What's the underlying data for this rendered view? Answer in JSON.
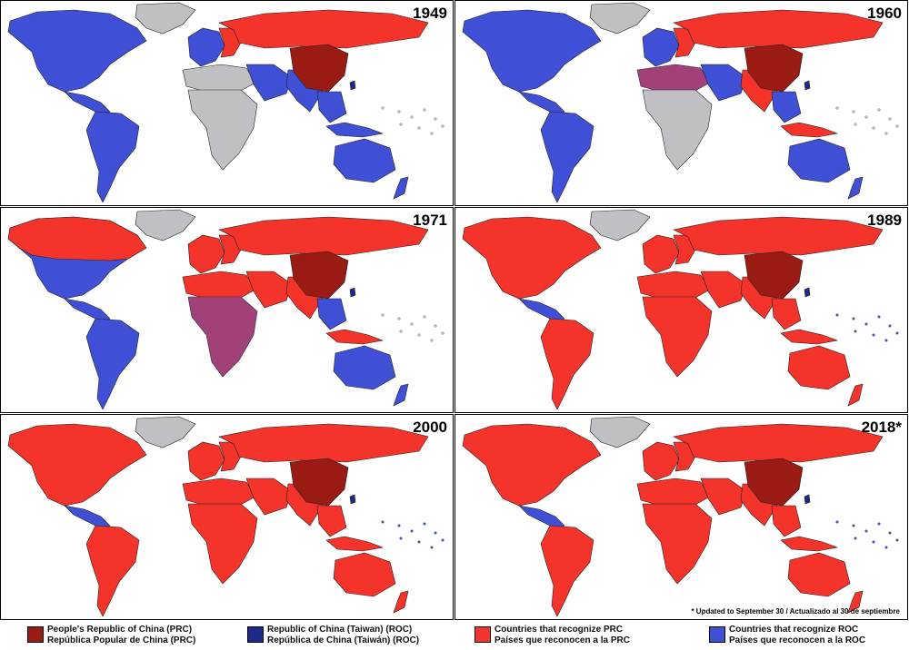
{
  "colors": {
    "prc": "#9a1a14",
    "roc": "#1c2a8c",
    "recognize_prc": "#f4332a",
    "recognize_roc": "#3f4fd6",
    "neutral": "#c0c0c4"
  },
  "panels": [
    {
      "year": "1949",
      "status": {
        "north_america": "roc",
        "greenland": "neutral",
        "central_america": "roc",
        "south_america": "roc",
        "europe_west": "roc",
        "europe_east": "prc_side",
        "russia": "prc_side",
        "middle_east": "roc",
        "africa": "neutral",
        "north_africa": "neutral",
        "south_asia": "roc",
        "southeast_asia": "roc",
        "china": "prc",
        "taiwan": "roc",
        "australia": "roc",
        "new_zealand": "roc",
        "indonesia": "roc"
      }
    },
    {
      "year": "1960",
      "status": {
        "north_america": "roc",
        "greenland": "neutral",
        "central_america": "roc",
        "south_america": "roc",
        "europe_west": "roc",
        "europe_east": "prc_side",
        "russia": "prc_side",
        "middle_east": "roc",
        "africa": "neutral",
        "north_africa": "mixed",
        "south_asia": "prc_side",
        "southeast_asia": "roc",
        "china": "prc",
        "taiwan": "roc",
        "australia": "roc",
        "new_zealand": "roc",
        "indonesia": "prc_side"
      }
    },
    {
      "year": "1971",
      "status": {
        "north_america": "roc",
        "greenland": "neutral",
        "canada": "prc_side",
        "central_america": "roc",
        "south_america": "roc",
        "europe_west": "prc_side",
        "europe_east": "prc_side",
        "russia": "prc_side",
        "middle_east": "prc_side",
        "africa": "mixed",
        "north_africa": "prc_side",
        "south_asia": "prc_side",
        "southeast_asia": "roc",
        "china": "prc",
        "taiwan": "roc",
        "australia": "roc",
        "new_zealand": "roc",
        "indonesia": "prc_side"
      }
    },
    {
      "year": "1989",
      "status": {
        "north_america": "prc_side",
        "greenland": "neutral",
        "central_america": "roc",
        "south_america": "prc_side",
        "europe_west": "prc_side",
        "europe_east": "prc_side",
        "russia": "prc_side",
        "middle_east": "prc_side",
        "africa": "prc_side",
        "north_africa": "prc_side",
        "south_asia": "prc_side",
        "southeast_asia": "prc_side",
        "china": "prc",
        "taiwan": "roc",
        "australia": "prc_side",
        "new_zealand": "prc_side",
        "indonesia": "prc_side"
      }
    },
    {
      "year": "2000",
      "status": {
        "north_america": "prc_side",
        "greenland": "neutral",
        "central_america": "roc",
        "south_america": "prc_side",
        "europe_west": "prc_side",
        "europe_east": "prc_side",
        "russia": "prc_side",
        "middle_east": "prc_side",
        "africa": "prc_side",
        "north_africa": "prc_side",
        "south_asia": "prc_side",
        "southeast_asia": "prc_side",
        "china": "prc",
        "taiwan": "roc",
        "australia": "prc_side",
        "new_zealand": "prc_side",
        "indonesia": "prc_side"
      }
    },
    {
      "year": "2018*",
      "status": {
        "north_america": "prc_side",
        "greenland": "neutral",
        "central_america": "roc",
        "south_america": "prc_side",
        "europe_west": "prc_side",
        "europe_east": "prc_side",
        "russia": "prc_side",
        "middle_east": "prc_side",
        "africa": "prc_side",
        "north_africa": "prc_side",
        "south_asia": "prc_side",
        "southeast_asia": "prc_side",
        "china": "prc",
        "taiwan": "roc",
        "australia": "prc_side",
        "new_zealand": "prc_side",
        "indonesia": "prc_side"
      }
    }
  ],
  "footnote": "* Updated to September 30 / Actualizado al 30 de septiembre",
  "legend": [
    {
      "key": "prc",
      "line1": "People's Republic of China (PRC)",
      "line2": "República Popular de China (PRC)"
    },
    {
      "key": "roc",
      "line1": "Republic of China (Taiwan) (ROC)",
      "line2": "República de China (Taiwán) (ROC)"
    },
    {
      "key": "recognize_prc",
      "line1": "Countries that recognize PRC",
      "line2": "Países que reconocen a la PRC"
    },
    {
      "key": "recognize_roc",
      "line1": "Countries that recognize ROC",
      "line2": "Países que reconocen a la ROC"
    }
  ]
}
